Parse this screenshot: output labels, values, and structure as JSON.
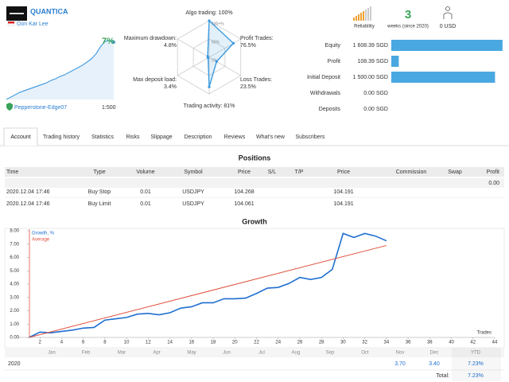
{
  "header": {
    "name": "QUANTICA",
    "author": "Oon Kar Lee",
    "server": "Pepperstone-Edge07",
    "leverage": "1:500"
  },
  "mini_chart": {
    "type": "line",
    "label": "7%",
    "color": "#4a9fe0",
    "ylim": [
      0,
      8
    ],
    "values": [
      0,
      0.3,
      0.6,
      0.9,
      1.1,
      1.3,
      1.5,
      1.7,
      1.9,
      2.1,
      2.4,
      2.6,
      2.9,
      3.1,
      3.4,
      3.7,
      4.0,
      4.3,
      4.7,
      5.1,
      5.7,
      6.6,
      7.3,
      7.4,
      7.2
    ]
  },
  "radar": {
    "type": "radar",
    "color": "#3d9be0",
    "rlim": [
      0,
      100
    ],
    "rticks": [
      {
        "value": 100,
        "label": "100+%"
      },
      {
        "value": 50,
        "label": "50%"
      },
      {
        "value": 0,
        "label": "0%"
      }
    ],
    "axes": [
      {
        "name": "Algo trading:",
        "value": 100,
        "label": "100%"
      },
      {
        "name": "Profit Trades:",
        "value": 76.5,
        "label": "76.5%"
      },
      {
        "name": "Loss Trades:",
        "value": 23.5,
        "label": "23.5%"
      },
      {
        "name": "Trading activity:",
        "value": 81,
        "label": "81%"
      },
      {
        "name": "Max deposit load:",
        "value": 3.4,
        "label": "3.4%"
      },
      {
        "name": "Maximum drawdown:",
        "value": 4.8,
        "label": "4.8%"
      }
    ]
  },
  "stats": {
    "reliability": "Reliability",
    "weeks": "3",
    "weeks_label": "weeks (since 2020)",
    "subscribers": "0 USD"
  },
  "balance": {
    "type": "bar",
    "color": "#4aa8e0",
    "xlim": [
      0,
      1610
    ],
    "rows": [
      {
        "label": "Equity",
        "value": 1608.39,
        "value_label": "1 608.39 SGD"
      },
      {
        "label": "Profit",
        "value": 108.39,
        "value_label": "108.39 SGD"
      },
      {
        "label": "Initial Deposit",
        "value": 1500.0,
        "value_label": "1 500.00 SGD"
      },
      {
        "label": "Withdrawals",
        "value": 0,
        "value_label": "0.00 SGD"
      },
      {
        "label": "Deposits",
        "value": 0,
        "value_label": "0.00 SGD"
      }
    ]
  },
  "tabs": [
    "Account",
    "Trading history",
    "Statistics",
    "Risks",
    "Slippage",
    "Description",
    "Reviews",
    "What's new",
    "Subscribers"
  ],
  "positions": {
    "title": "Positions",
    "columns": [
      "Time",
      "Type",
      "Volume",
      "Symbol",
      "Price",
      "S/L",
      "T/P",
      "Price",
      "Commission",
      "Swap",
      "Profit"
    ],
    "summary": "0.00",
    "rows": [
      [
        "2020.12.04 17:46",
        "Buy Stop",
        "0.01",
        "USDJPY",
        "104.268",
        null,
        null,
        "104.191",
        null,
        null,
        null
      ],
      [
        "2020.12.04 17:46",
        "Buy Limit",
        "0.01",
        "USDJPY",
        "104.061",
        null,
        null,
        "104.191",
        null,
        null,
        null
      ]
    ]
  },
  "growth_chart": {
    "type": "line",
    "title": "Growth",
    "xlabel": "Trades",
    "legend": "top-left",
    "xlim": [
      0,
      44
    ],
    "xticks": [
      2,
      4,
      6,
      8,
      10,
      12,
      14,
      16,
      18,
      20,
      22,
      24,
      26,
      28,
      30,
      32,
      34,
      36,
      38,
      40,
      42,
      44
    ],
    "ylim": [
      0,
      8
    ],
    "yticks": [
      {
        "value": 0,
        "label": "0.00"
      },
      {
        "value": 1,
        "label": "1.00"
      },
      {
        "value": 2,
        "label": "2.00"
      },
      {
        "value": 3,
        "label": "3.00"
      },
      {
        "value": 4,
        "label": "4.00"
      },
      {
        "value": 5,
        "label": "5.00"
      },
      {
        "value": 6,
        "label": "6.00"
      },
      {
        "value": 7,
        "label": "7.00"
      },
      {
        "value": 8,
        "label": "8.00"
      }
    ],
    "series": [
      {
        "name": "Growth, %",
        "color": "#1f6fd0",
        "x": [
          1,
          2,
          3,
          4,
          5,
          6,
          7,
          8,
          9,
          10,
          11,
          12,
          13,
          14,
          15,
          16,
          17,
          18,
          19,
          20,
          21,
          22,
          23,
          24,
          25,
          26,
          27,
          28,
          29,
          30,
          31,
          32,
          33,
          34
        ],
        "values": [
          0,
          0.4,
          0.35,
          0.45,
          0.55,
          0.7,
          0.75,
          1.3,
          1.4,
          1.5,
          1.75,
          1.8,
          1.7,
          1.85,
          2.2,
          2.3,
          2.6,
          2.6,
          2.9,
          2.9,
          2.95,
          3.3,
          3.7,
          3.75,
          4.05,
          4.5,
          4.35,
          4.5,
          5.1,
          7.8,
          7.5,
          7.8,
          7.6,
          7.25
        ]
      },
      {
        "name": "Average",
        "color": "#e0503c",
        "x": [
          1,
          34
        ],
        "values": [
          0,
          6.9
        ]
      }
    ]
  },
  "monthly": {
    "months": [
      "Jan",
      "Feb",
      "Mar",
      "Apr",
      "May",
      "Jun",
      "Jul",
      "Aug",
      "Sep",
      "Oct",
      "Nov",
      "Dec",
      "YTD"
    ],
    "rows": [
      {
        "year": "2020",
        "values": [
          null,
          null,
          null,
          null,
          null,
          null,
          null,
          null,
          null,
          null,
          "3.70",
          "3.40",
          "7.23%"
        ]
      }
    ],
    "total_label": "Total:",
    "total": "7.23%"
  }
}
